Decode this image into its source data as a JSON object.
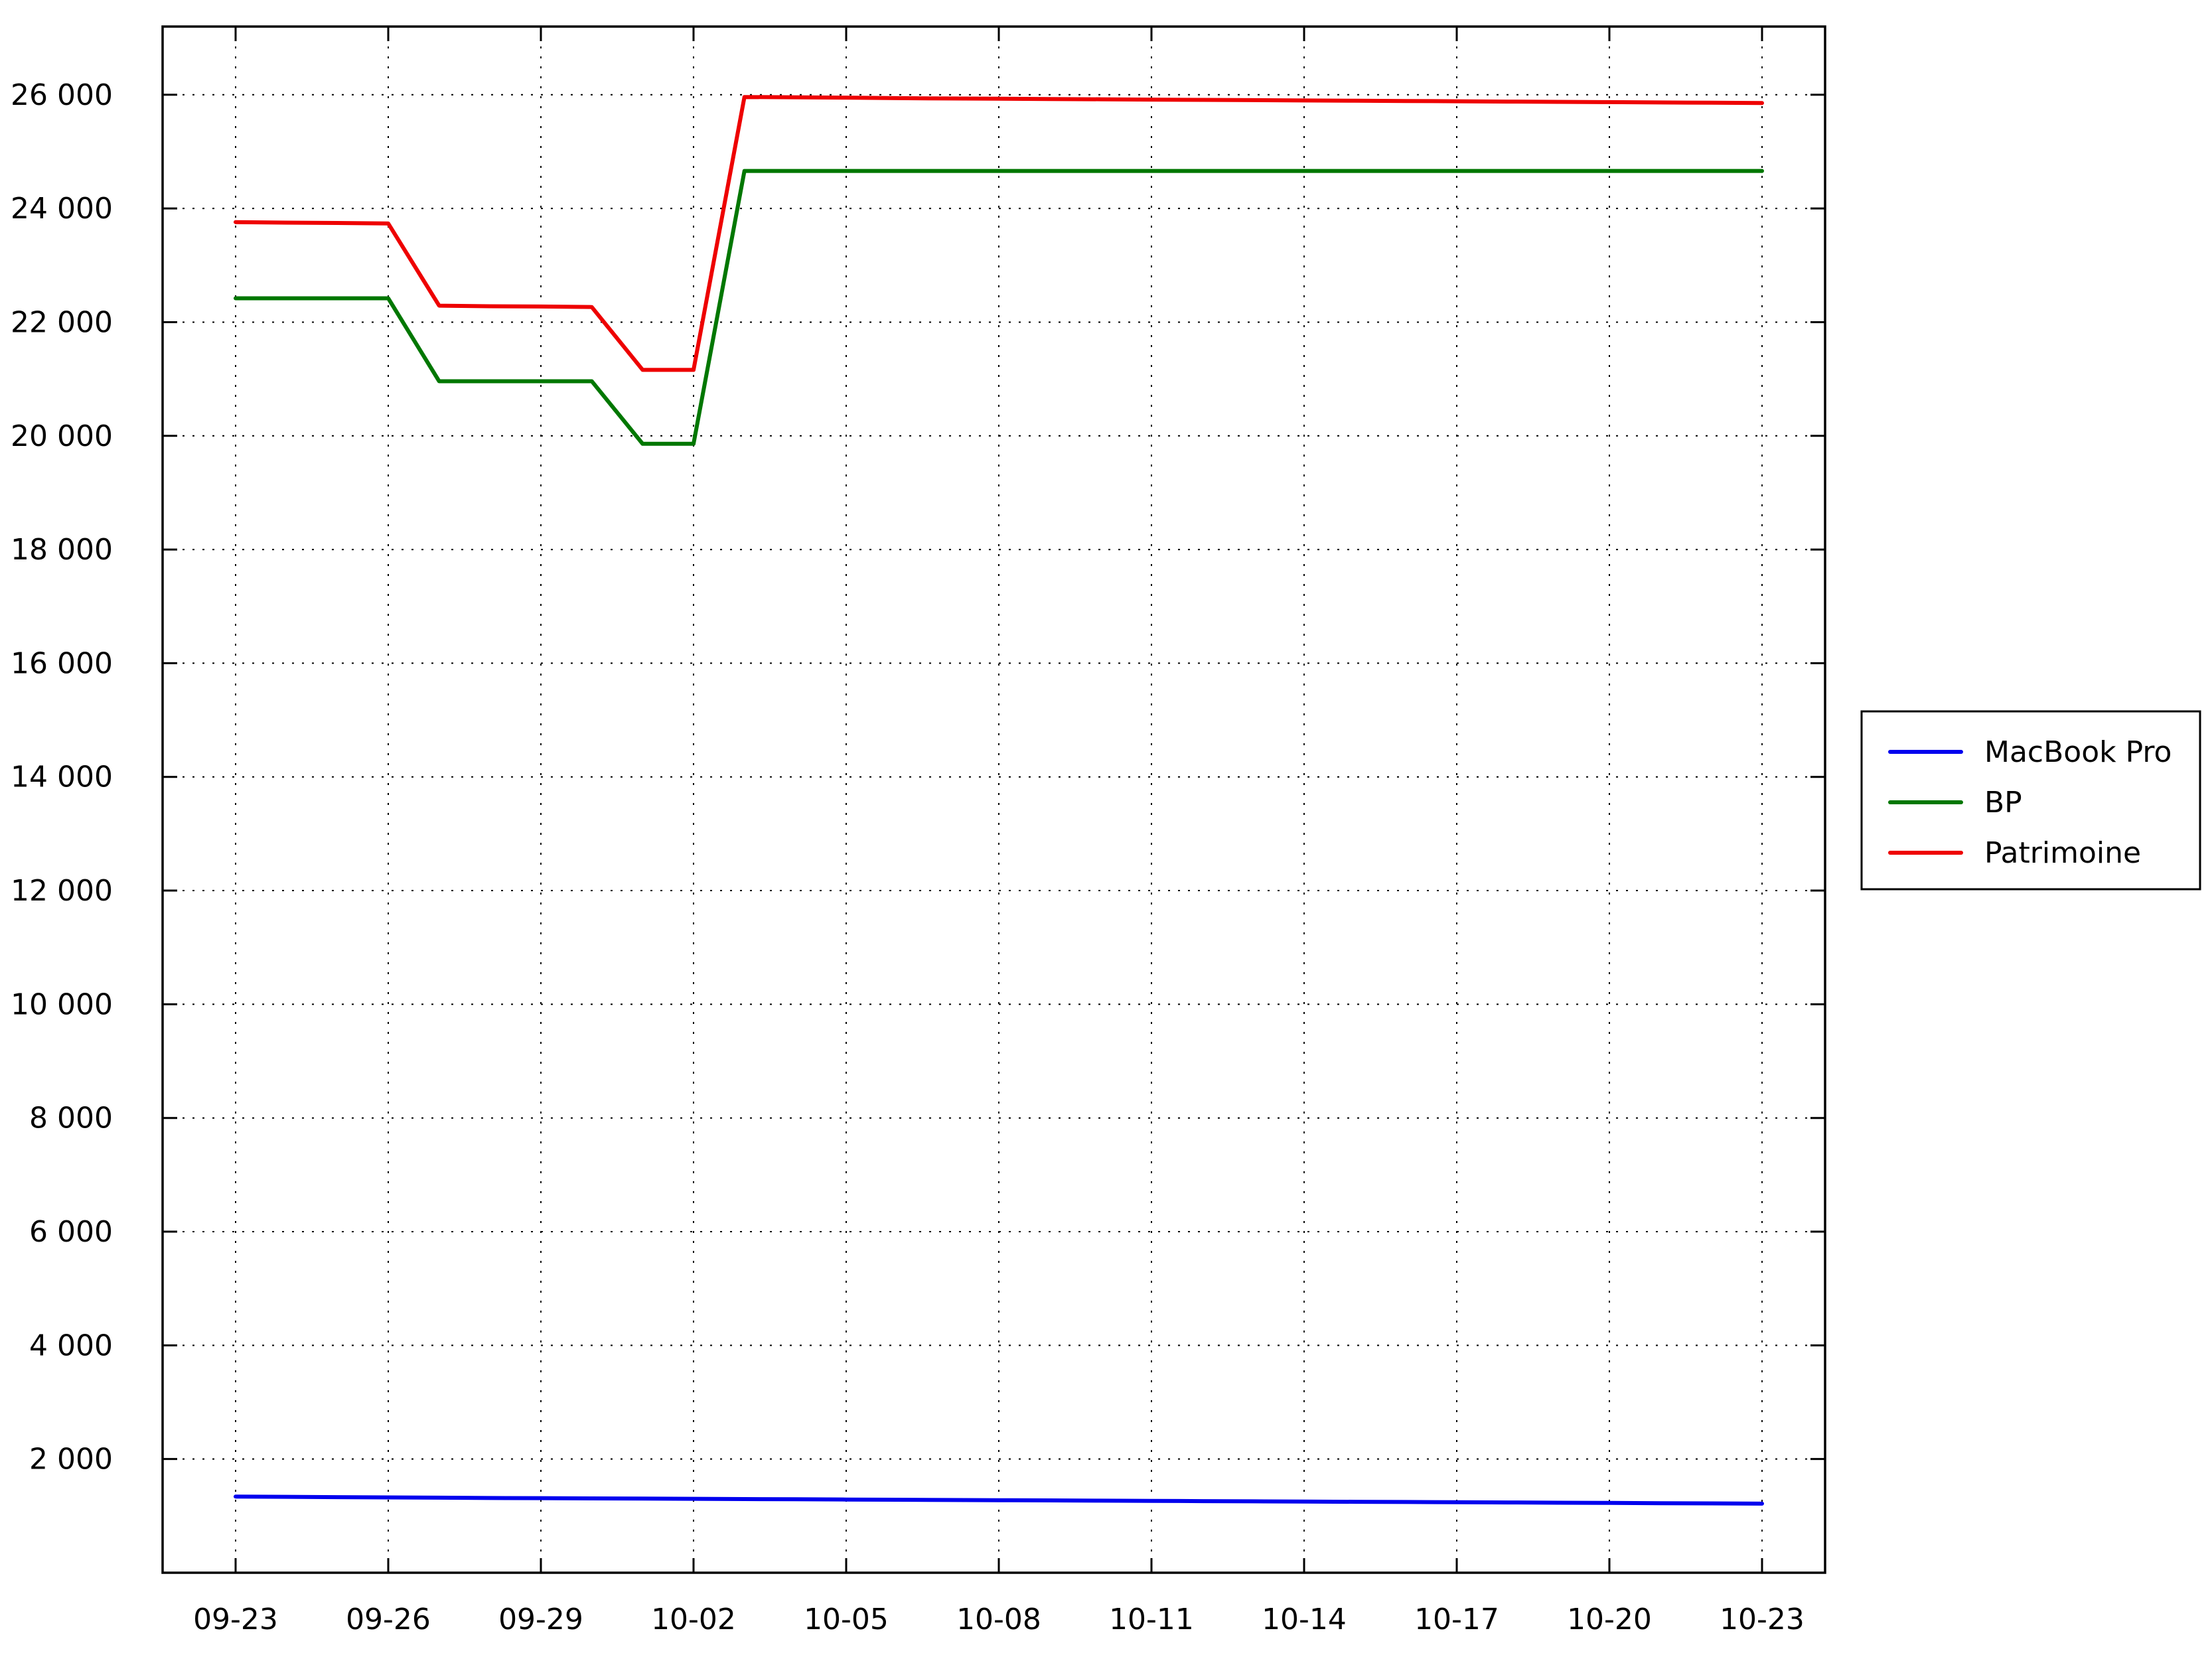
{
  "chart_data": {
    "type": "line",
    "title": "",
    "xlabel": "",
    "ylabel": "",
    "x_ticks": [
      "09-23",
      "09-26",
      "09-29",
      "10-02",
      "10-05",
      "10-08",
      "10-11",
      "10-14",
      "10-17",
      "10-20",
      "10-23"
    ],
    "x": [
      "09-23",
      "09-24",
      "09-25",
      "09-26",
      "09-27",
      "09-28",
      "09-29",
      "09-30",
      "10-01",
      "10-02",
      "10-03",
      "10-04",
      "10-05",
      "10-06",
      "10-07",
      "10-08",
      "10-09",
      "10-10",
      "10-11",
      "10-12",
      "10-13",
      "10-14",
      "10-15",
      "10-16",
      "10-17",
      "10-18",
      "10-19",
      "10-20",
      "10-21",
      "10-22",
      "10-23"
    ],
    "y_ticks": [
      "2 000",
      "4 000",
      "6 000",
      "8 000",
      "10 000",
      "12 000",
      "14 000",
      "16 000",
      "18 000",
      "20 000",
      "22 000",
      "24 000",
      "26 000"
    ],
    "ylim": [
      0,
      27200
    ],
    "grid": true,
    "legend_position": "right",
    "series": [
      {
        "name": "MacBook Pro",
        "color": "#0000ee",
        "values": [
          1340,
          1335,
          1330,
          1325,
          1320,
          1315,
          1312,
          1308,
          1305,
          1300,
          1296,
          1292,
          1288,
          1284,
          1280,
          1276,
          1272,
          1268,
          1264,
          1260,
          1256,
          1252,
          1248,
          1244,
          1240,
          1236,
          1232,
          1228,
          1224,
          1220,
          1215
        ]
      },
      {
        "name": "BP",
        "color": "#007700",
        "values": [
          22420,
          22420,
          22420,
          22420,
          20960,
          20960,
          20960,
          20960,
          19860,
          19860,
          24660,
          24660,
          24660,
          24660,
          24660,
          24660,
          24660,
          24660,
          24660,
          24660,
          24660,
          24660,
          24660,
          24660,
          24660,
          24660,
          24660,
          24660,
          24660,
          24660,
          24660
        ]
      },
      {
        "name": "Patrimoine",
        "color": "#ee0000",
        "values": [
          23760,
          23750,
          23745,
          23735,
          22290,
          22280,
          22275,
          22265,
          21160,
          21160,
          25960,
          25955,
          25950,
          25940,
          25935,
          25930,
          25925,
          25920,
          25915,
          25910,
          25905,
          25900,
          25895,
          25890,
          25885,
          25880,
          25875,
          25870,
          25865,
          25860,
          25855
        ]
      }
    ]
  }
}
